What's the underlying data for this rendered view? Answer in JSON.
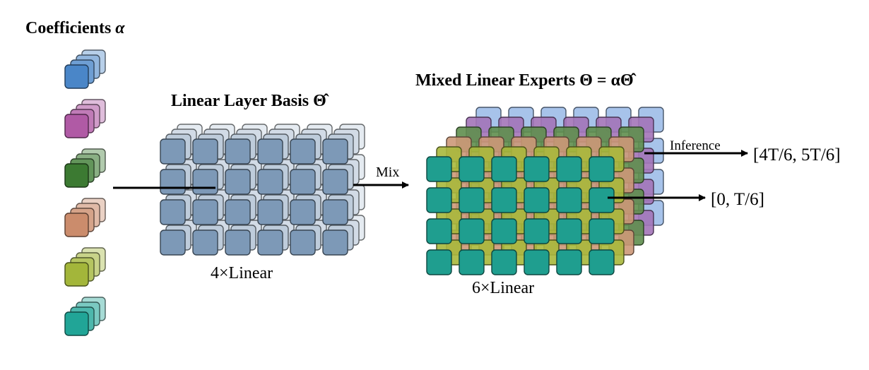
{
  "coefficients": {
    "title_text": "Coefficients ",
    "title_symbol": "α",
    "colors": [
      "#4a86c8",
      "#b05aa5",
      "#3c7a32",
      "#cb8c6c",
      "#a3b63a",
      "#21a597"
    ]
  },
  "basis": {
    "title_text": "Linear Layer Basis ",
    "title_symbol": "Θ̂",
    "caption": "4×Linear",
    "color": "#7d99b7"
  },
  "mixed": {
    "title_text": "Mixed Linear Experts ",
    "title_symbol": "Θ = αΘ̂",
    "caption": "6×Linear",
    "layer_colors": [
      "#9dbde8",
      "#a374b8",
      "#5f8e4e",
      "#cc9878",
      "#a9b83c",
      "#1f9e8f"
    ]
  },
  "arrows": {
    "mix_label": "Mix",
    "inference_label": "Inference",
    "output_top": "[4T/6, 5T/6]",
    "output_bottom": "[0, T/6]"
  }
}
